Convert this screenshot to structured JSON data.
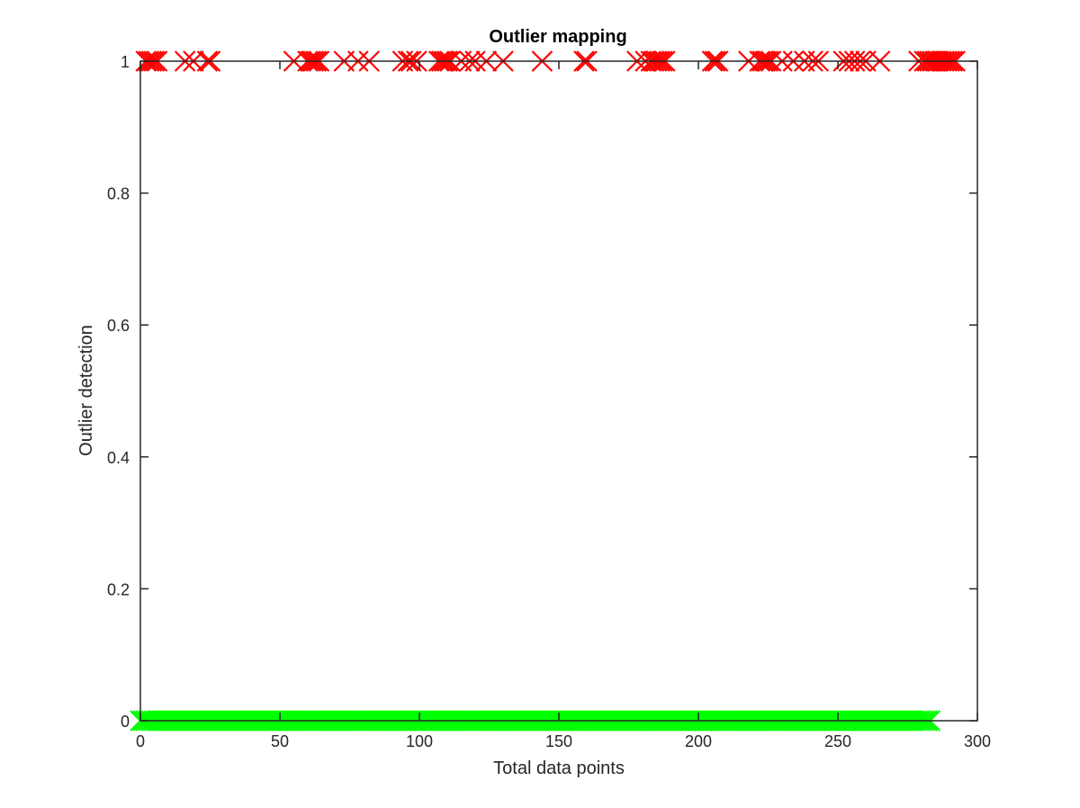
{
  "chart_data": {
    "type": "scatter",
    "title": "Outlier mapping",
    "xlabel": "Total data points",
    "ylabel": "Outlier detection",
    "xlim": [
      0,
      300
    ],
    "ylim": [
      0,
      1
    ],
    "xticks": [
      "0",
      "50",
      "100",
      "150",
      "200",
      "250",
      "300"
    ],
    "yticks": [
      "0",
      "0.2",
      "0.4",
      "0.6",
      "0.8",
      "1"
    ],
    "grid": false,
    "marker": "x",
    "series": [
      {
        "color": "#ff0000",
        "y": 1,
        "x": [
          2,
          3,
          4,
          5,
          6,
          16,
          19,
          24,
          25,
          55,
          60,
          61,
          62,
          63,
          64,
          73,
          78,
          82,
          94,
          96,
          97,
          99,
          107,
          108,
          109,
          110,
          111,
          115,
          118,
          120,
          124,
          130,
          144,
          159,
          160,
          178,
          181,
          183,
          184,
          185,
          186,
          187,
          188,
          205,
          206,
          207,
          218,
          222,
          223,
          224,
          225,
          226,
          230,
          234,
          238,
          241,
          243,
          252,
          254,
          256,
          258,
          260,
          265,
          279,
          281,
          282,
          283,
          284,
          285,
          286,
          287,
          288,
          289,
          290,
          291,
          292
        ]
      },
      {
        "color": "#00ff00",
        "y": 0,
        "x_range": [
          0,
          283
        ]
      }
    ]
  }
}
